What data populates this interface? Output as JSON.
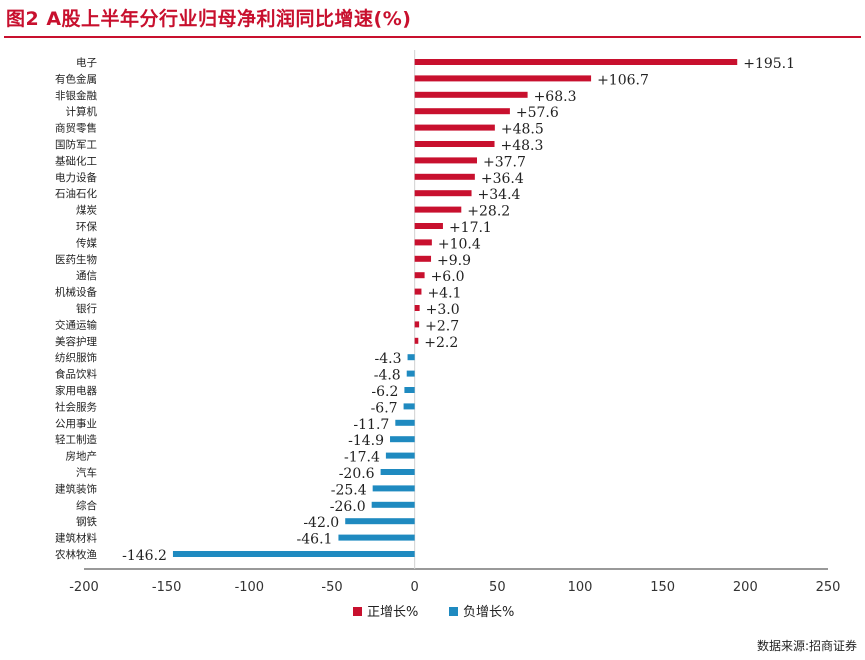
{
  "figure": {
    "title": "图2  A股上半年分行业归母净利润同比增速(%)",
    "source": "数据来源:招商证券"
  },
  "colors": {
    "positive": "#c8102e",
    "negative": "#1f8ac0",
    "axis": "#333333",
    "title": "#c8102e"
  },
  "chart_data": {
    "type": "bar",
    "orientation": "horizontal",
    "title": "图2  A股上半年分行业归母净利润同比增速(%)",
    "xlim": [
      -200,
      250
    ],
    "xticks": [
      -200,
      -150,
      -100,
      -50,
      0,
      50,
      100,
      150,
      200,
      250
    ],
    "grid": false,
    "legend_position": "bottom-center",
    "categories": [
      "电子",
      "有色金属",
      "非银金融",
      "计算机",
      "商贸零售",
      "国防军工",
      "基础化工",
      "电力设备",
      "石油石化",
      "煤炭",
      "环保",
      "传媒",
      "医药生物",
      "通信",
      "机械设备",
      "银行",
      "交通运输",
      "美容护理",
      "纺织服饰",
      "食品饮料",
      "家用电器",
      "社会服务",
      "公用事业",
      "轻工制造",
      "房地产",
      "汽车",
      "建筑装饰",
      "综合",
      "钢铁",
      "建筑材料",
      "农林牧渔"
    ],
    "values": [
      195.1,
      106.7,
      68.3,
      57.6,
      48.5,
      48.3,
      37.7,
      36.4,
      34.4,
      28.2,
      17.1,
      10.4,
      9.9,
      6.0,
      4.1,
      3.0,
      2.7,
      2.2,
      -4.3,
      -4.8,
      -6.2,
      -6.7,
      -11.7,
      -14.9,
      -17.4,
      -20.6,
      -25.4,
      -26.0,
      -42.0,
      -46.1,
      -146.2
    ],
    "labels": [
      "+195.1",
      "+106.7",
      "+68.3",
      "+57.6",
      "+48.5",
      "+48.3",
      "+37.7",
      "+36.4",
      "+34.4",
      "+28.2",
      "+17.1",
      "+10.4",
      "+9.9",
      "+6.0",
      "+4.1",
      "+3.0",
      "+2.7",
      "+2.2",
      "-4.3",
      "-4.8",
      "-6.2",
      "-6.7",
      "-11.7",
      "-14.9",
      "-17.4",
      "-20.6",
      "-25.4",
      "-26.0",
      "-42.0",
      "-46.1",
      "-146.2"
    ],
    "series": [
      {
        "name": "正增长%",
        "color": "#c8102e"
      },
      {
        "name": "负增长%",
        "color": "#1f8ac0"
      }
    ]
  }
}
